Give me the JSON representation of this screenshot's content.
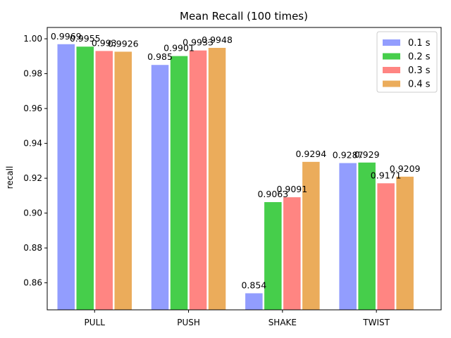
{
  "chart_data": {
    "type": "bar",
    "title": "Mean Recall (100 times)",
    "xlabel": "",
    "ylabel": "recall",
    "categories": [
      "PULL",
      "PUSH",
      "SHAKE",
      "TWIST"
    ],
    "series": [
      {
        "name": "0.1 s",
        "color": "#929dfe",
        "values": [
          0.9969,
          0.985,
          0.854,
          0.9287
        ],
        "labels": [
          "0.9969",
          "0.985",
          "0.854",
          "0.9287"
        ]
      },
      {
        "name": "0.2 s",
        "color": "#46ce4b",
        "values": [
          0.9955,
          0.9901,
          0.9063,
          0.929
        ],
        "labels": [
          "0.9955",
          "0.9901",
          "0.9063",
          "0.929"
        ]
      },
      {
        "name": "0.3 s",
        "color": "#ff8582",
        "values": [
          0.993,
          0.9933,
          0.9091,
          0.9171
        ],
        "labels": [
          "0.993",
          "0.9933",
          "0.9091",
          "0.9171"
        ]
      },
      {
        "name": "0.4 s",
        "color": "#ebac5b",
        "values": [
          0.9926,
          0.9948,
          0.9294,
          0.9209
        ],
        "labels": [
          "0.9926",
          "0.9948",
          "0.9294",
          "0.9209"
        ]
      }
    ],
    "ylim": [
      0.8445,
      1.0065
    ],
    "yticks": [
      0.86,
      0.88,
      0.9,
      0.92,
      0.94,
      0.96,
      0.98,
      1.0
    ],
    "ytick_labels": [
      "0.86",
      "0.88",
      "0.90",
      "0.92",
      "0.94",
      "0.96",
      "0.98",
      "1.00"
    ],
    "grid": false,
    "legend": "top-right"
  }
}
